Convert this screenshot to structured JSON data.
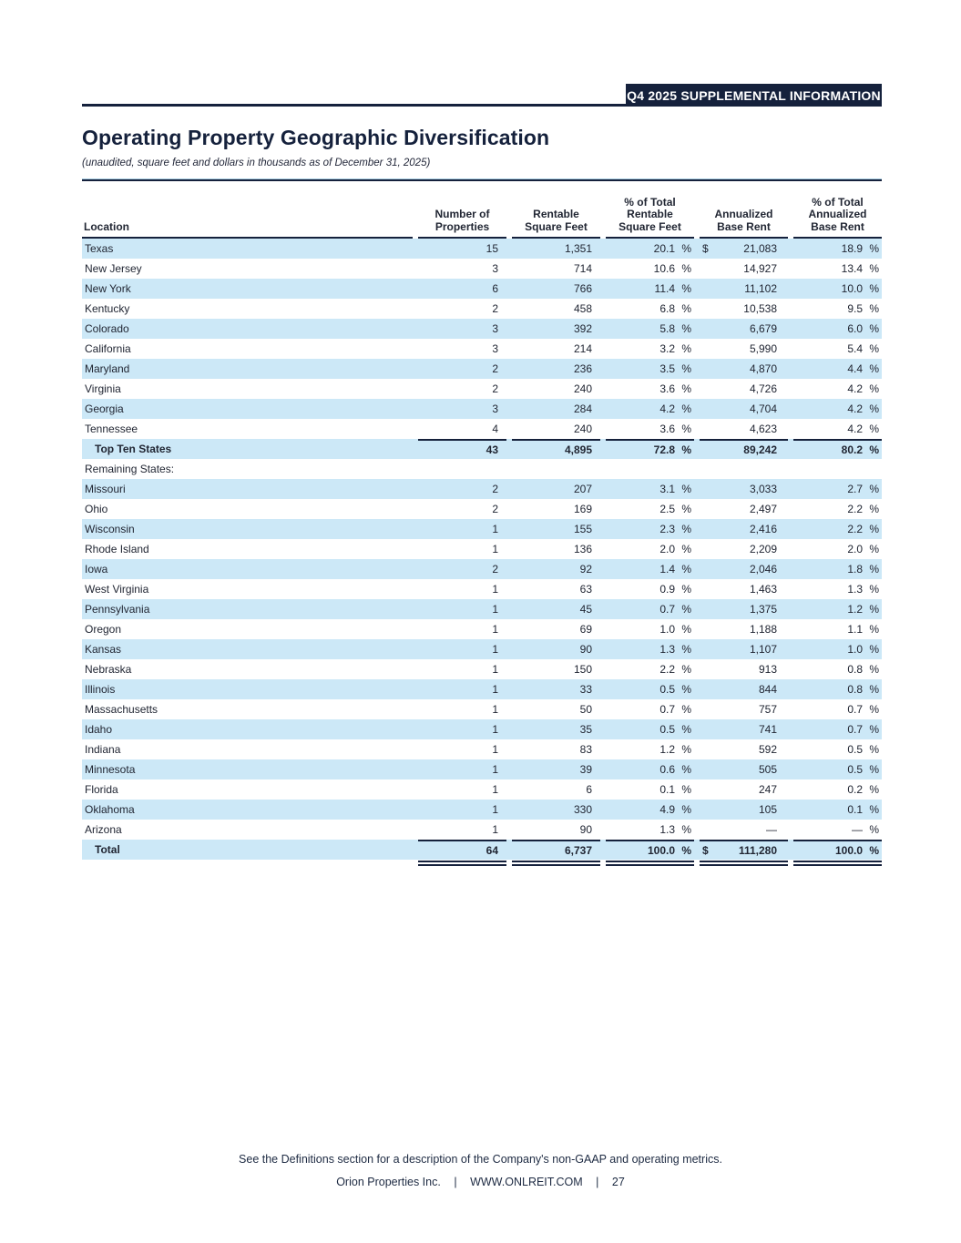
{
  "header": {
    "banner": "Q4 2025 SUPPLEMENTAL INFORMATION"
  },
  "title": "Operating Property Geographic Diversification",
  "subtitle": "(unaudited, square feet and dollars in thousands as of December 31, 2025)",
  "colors": {
    "navy": "#15213c",
    "row_highlight": "#cce8f7",
    "text": "#212633"
  },
  "table": {
    "percent_sign": "%",
    "columns": [
      {
        "key": "location",
        "lines": [
          "Location"
        ]
      },
      {
        "key": "properties",
        "lines": [
          "Number of",
          "Properties"
        ]
      },
      {
        "key": "sqft",
        "lines": [
          "Rentable",
          "Square Feet"
        ]
      },
      {
        "key": "sqft-pct",
        "lines": [
          "% of Total",
          "Rentable",
          "Square Feet"
        ]
      },
      {
        "key": "rent",
        "lines": [
          "Annualized",
          "Base Rent"
        ]
      },
      {
        "key": "rent-pct",
        "lines": [
          "% of Total",
          "Annualized",
          "Base Rent"
        ]
      }
    ],
    "rows": [
      {
        "location": "Texas",
        "properties": "15",
        "sqft": "1,351",
        "sqft_pct": "20.1",
        "dollar": "$",
        "rent": "21,083",
        "rent_pct": "18.9",
        "shaded": true,
        "bold": false,
        "indent": false,
        "topline": false,
        "doubleline": false
      },
      {
        "location": "New Jersey",
        "properties": "3",
        "sqft": "714",
        "sqft_pct": "10.6",
        "dollar": "",
        "rent": "14,927",
        "rent_pct": "13.4",
        "shaded": false,
        "bold": false,
        "indent": false,
        "topline": false,
        "doubleline": false
      },
      {
        "location": "New York",
        "properties": "6",
        "sqft": "766",
        "sqft_pct": "11.4",
        "dollar": "",
        "rent": "11,102",
        "rent_pct": "10.0",
        "shaded": true,
        "bold": false,
        "indent": false,
        "topline": false,
        "doubleline": false
      },
      {
        "location": "Kentucky",
        "properties": "2",
        "sqft": "458",
        "sqft_pct": "6.8",
        "dollar": "",
        "rent": "10,538",
        "rent_pct": "9.5",
        "shaded": false,
        "bold": false,
        "indent": false,
        "topline": false,
        "doubleline": false
      },
      {
        "location": "Colorado",
        "properties": "3",
        "sqft": "392",
        "sqft_pct": "5.8",
        "dollar": "",
        "rent": "6,679",
        "rent_pct": "6.0",
        "shaded": true,
        "bold": false,
        "indent": false,
        "topline": false,
        "doubleline": false
      },
      {
        "location": "California",
        "properties": "3",
        "sqft": "214",
        "sqft_pct": "3.2",
        "dollar": "",
        "rent": "5,990",
        "rent_pct": "5.4",
        "shaded": false,
        "bold": false,
        "indent": false,
        "topline": false,
        "doubleline": false
      },
      {
        "location": "Maryland",
        "properties": "2",
        "sqft": "236",
        "sqft_pct": "3.5",
        "dollar": "",
        "rent": "4,870",
        "rent_pct": "4.4",
        "shaded": true,
        "bold": false,
        "indent": false,
        "topline": false,
        "doubleline": false
      },
      {
        "location": "Virginia",
        "properties": "2",
        "sqft": "240",
        "sqft_pct": "3.6",
        "dollar": "",
        "rent": "4,726",
        "rent_pct": "4.2",
        "shaded": false,
        "bold": false,
        "indent": false,
        "topline": false,
        "doubleline": false
      },
      {
        "location": "Georgia",
        "properties": "3",
        "sqft": "284",
        "sqft_pct": "4.2",
        "dollar": "",
        "rent": "4,704",
        "rent_pct": "4.2",
        "shaded": true,
        "bold": false,
        "indent": false,
        "topline": false,
        "doubleline": false
      },
      {
        "location": "Tennessee",
        "properties": "4",
        "sqft": "240",
        "sqft_pct": "3.6",
        "dollar": "",
        "rent": "4,623",
        "rent_pct": "4.2",
        "shaded": false,
        "bold": false,
        "indent": false,
        "topline": false,
        "doubleline": false
      },
      {
        "location": "Top Ten States",
        "properties": "43",
        "sqft": "4,895",
        "sqft_pct": "72.8",
        "dollar": "",
        "rent": "89,242",
        "rent_pct": "80.2",
        "shaded": true,
        "bold": true,
        "indent": true,
        "topline": true,
        "doubleline": false
      },
      {
        "location": "Remaining States:",
        "properties": "",
        "sqft": "",
        "sqft_pct": "",
        "dollar": "",
        "rent": "",
        "rent_pct": "",
        "shaded": false,
        "bold": false,
        "indent": false,
        "topline": false,
        "doubleline": false
      },
      {
        "location": "Missouri",
        "properties": "2",
        "sqft": "207",
        "sqft_pct": "3.1",
        "dollar": "",
        "rent": "3,033",
        "rent_pct": "2.7",
        "shaded": true,
        "bold": false,
        "indent": false,
        "topline": false,
        "doubleline": false
      },
      {
        "location": "Ohio",
        "properties": "2",
        "sqft": "169",
        "sqft_pct": "2.5",
        "dollar": "",
        "rent": "2,497",
        "rent_pct": "2.2",
        "shaded": false,
        "bold": false,
        "indent": false,
        "topline": false,
        "doubleline": false
      },
      {
        "location": "Wisconsin",
        "properties": "1",
        "sqft": "155",
        "sqft_pct": "2.3",
        "dollar": "",
        "rent": "2,416",
        "rent_pct": "2.2",
        "shaded": true,
        "bold": false,
        "indent": false,
        "topline": false,
        "doubleline": false
      },
      {
        "location": "Rhode Island",
        "properties": "1",
        "sqft": "136",
        "sqft_pct": "2.0",
        "dollar": "",
        "rent": "2,209",
        "rent_pct": "2.0",
        "shaded": false,
        "bold": false,
        "indent": false,
        "topline": false,
        "doubleline": false
      },
      {
        "location": "Iowa",
        "properties": "2",
        "sqft": "92",
        "sqft_pct": "1.4",
        "dollar": "",
        "rent": "2,046",
        "rent_pct": "1.8",
        "shaded": true,
        "bold": false,
        "indent": false,
        "topline": false,
        "doubleline": false
      },
      {
        "location": "West Virginia",
        "properties": "1",
        "sqft": "63",
        "sqft_pct": "0.9",
        "dollar": "",
        "rent": "1,463",
        "rent_pct": "1.3",
        "shaded": false,
        "bold": false,
        "indent": false,
        "topline": false,
        "doubleline": false
      },
      {
        "location": "Pennsylvania",
        "properties": "1",
        "sqft": "45",
        "sqft_pct": "0.7",
        "dollar": "",
        "rent": "1,375",
        "rent_pct": "1.2",
        "shaded": true,
        "bold": false,
        "indent": false,
        "topline": false,
        "doubleline": false
      },
      {
        "location": "Oregon",
        "properties": "1",
        "sqft": "69",
        "sqft_pct": "1.0",
        "dollar": "",
        "rent": "1,188",
        "rent_pct": "1.1",
        "shaded": false,
        "bold": false,
        "indent": false,
        "topline": false,
        "doubleline": false
      },
      {
        "location": "Kansas",
        "properties": "1",
        "sqft": "90",
        "sqft_pct": "1.3",
        "dollar": "",
        "rent": "1,107",
        "rent_pct": "1.0",
        "shaded": true,
        "bold": false,
        "indent": false,
        "topline": false,
        "doubleline": false
      },
      {
        "location": "Nebraska",
        "properties": "1",
        "sqft": "150",
        "sqft_pct": "2.2",
        "dollar": "",
        "rent": "913",
        "rent_pct": "0.8",
        "shaded": false,
        "bold": false,
        "indent": false,
        "topline": false,
        "doubleline": false
      },
      {
        "location": "Illinois",
        "properties": "1",
        "sqft": "33",
        "sqft_pct": "0.5",
        "dollar": "",
        "rent": "844",
        "rent_pct": "0.8",
        "shaded": true,
        "bold": false,
        "indent": false,
        "topline": false,
        "doubleline": false
      },
      {
        "location": "Massachusetts",
        "properties": "1",
        "sqft": "50",
        "sqft_pct": "0.7",
        "dollar": "",
        "rent": "757",
        "rent_pct": "0.7",
        "shaded": false,
        "bold": false,
        "indent": false,
        "topline": false,
        "doubleline": false
      },
      {
        "location": "Idaho",
        "properties": "1",
        "sqft": "35",
        "sqft_pct": "0.5",
        "dollar": "",
        "rent": "741",
        "rent_pct": "0.7",
        "shaded": true,
        "bold": false,
        "indent": false,
        "topline": false,
        "doubleline": false
      },
      {
        "location": "Indiana",
        "properties": "1",
        "sqft": "83",
        "sqft_pct": "1.2",
        "dollar": "",
        "rent": "592",
        "rent_pct": "0.5",
        "shaded": false,
        "bold": false,
        "indent": false,
        "topline": false,
        "doubleline": false
      },
      {
        "location": "Minnesota",
        "properties": "1",
        "sqft": "39",
        "sqft_pct": "0.6",
        "dollar": "",
        "rent": "505",
        "rent_pct": "0.5",
        "shaded": true,
        "bold": false,
        "indent": false,
        "topline": false,
        "doubleline": false
      },
      {
        "location": "Florida",
        "properties": "1",
        "sqft": "6",
        "sqft_pct": "0.1",
        "dollar": "",
        "rent": "247",
        "rent_pct": "0.2",
        "shaded": false,
        "bold": false,
        "indent": false,
        "topline": false,
        "doubleline": false
      },
      {
        "location": "Oklahoma",
        "properties": "1",
        "sqft": "330",
        "sqft_pct": "4.9",
        "dollar": "",
        "rent": "105",
        "rent_pct": "0.1",
        "shaded": true,
        "bold": false,
        "indent": false,
        "topline": false,
        "doubleline": false
      },
      {
        "location": "Arizona",
        "properties": "1",
        "sqft": "90",
        "sqft_pct": "1.3",
        "dollar": "",
        "rent": "—",
        "rent_pct": "—",
        "shaded": false,
        "bold": false,
        "indent": false,
        "topline": false,
        "doubleline": false
      },
      {
        "location": "Total",
        "properties": "64",
        "sqft": "6,737",
        "sqft_pct": "100.0",
        "dollar": "$",
        "rent": "111,280",
        "rent_pct": "100.0",
        "shaded": true,
        "bold": true,
        "indent": true,
        "topline": true,
        "doubleline": true
      }
    ]
  },
  "footer": {
    "note": "See the Definitions section for a description of the Company's non-GAAP and operating metrics.",
    "company": "Orion Properties Inc.",
    "separator": "|",
    "website": "WWW.ONLREIT.COM",
    "page_number": "27"
  }
}
